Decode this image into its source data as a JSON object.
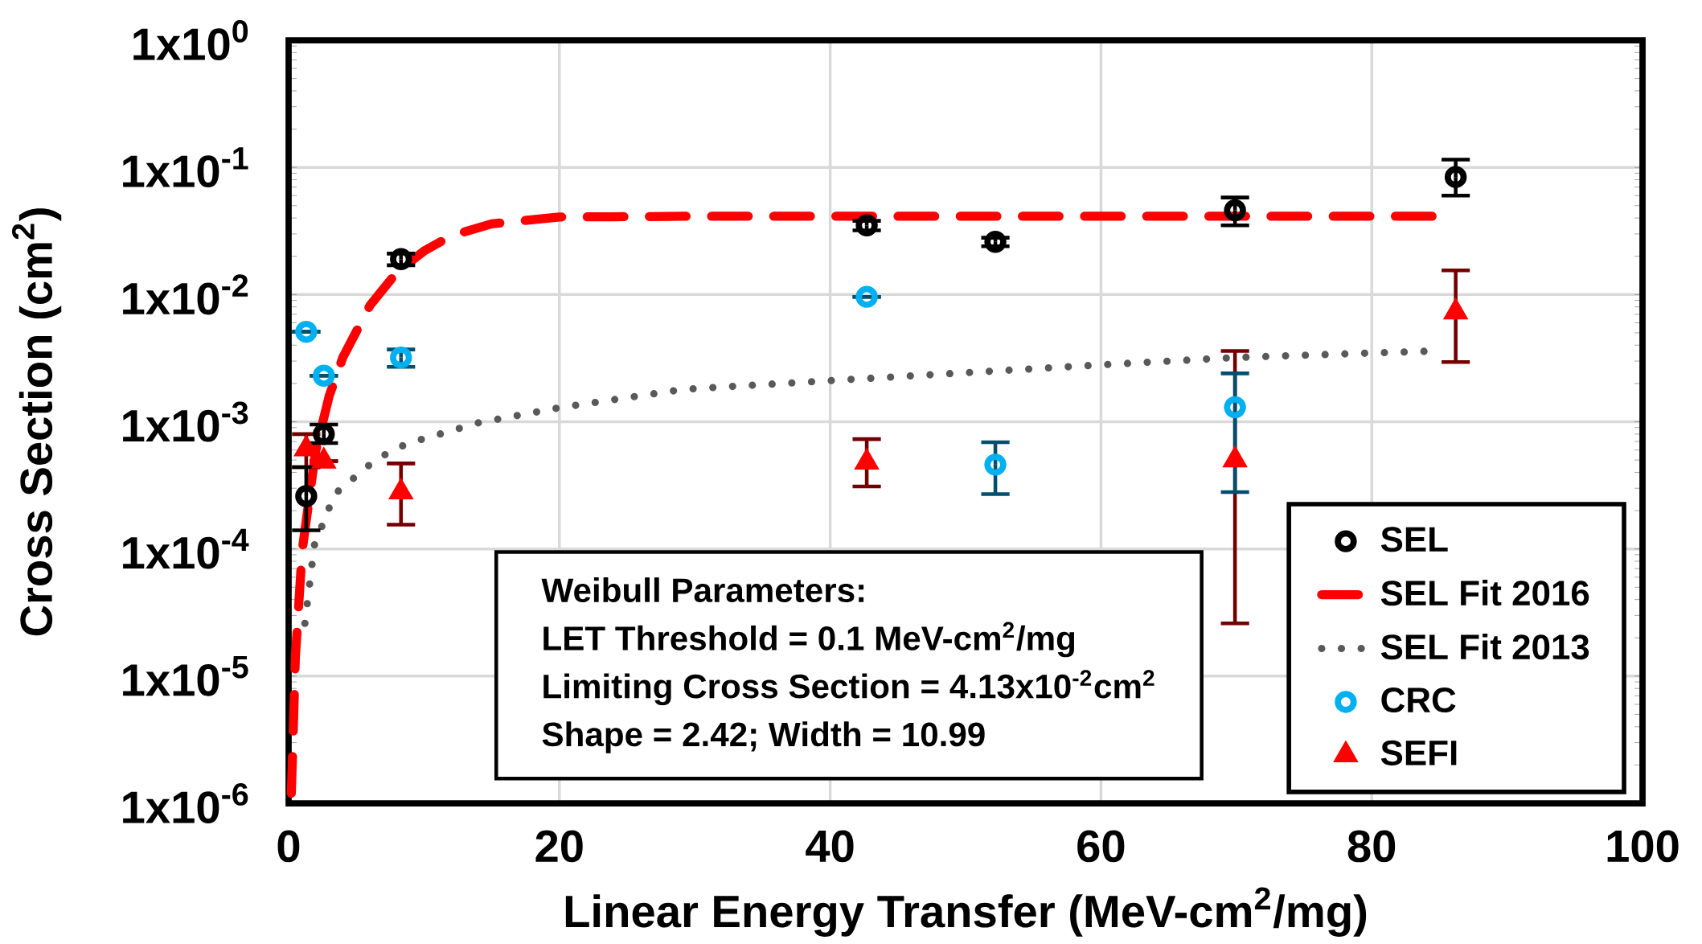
{
  "chart_data": {
    "type": "scatter",
    "xlabel": "Linear Energy Transfer (MeV-cm$^{2}$/mg)",
    "ylabel": "Cross Section (cm$^{2}$)",
    "xlim": [
      0,
      100
    ],
    "xticks": [
      0,
      20,
      40,
      60,
      80,
      100
    ],
    "ylim": [
      1e-06,
      1
    ],
    "yticks": [
      {
        "value": 1e-06,
        "label": "1x10$^{-6}$"
      },
      {
        "value": 1e-05,
        "label": "1x10$^{-5}$"
      },
      {
        "value": 0.0001,
        "label": "1x10$^{-4}$"
      },
      {
        "value": 0.001,
        "label": "1x10$^{-3}$"
      },
      {
        "value": 0.01,
        "label": "1x10$^{-2}$"
      },
      {
        "value": 0.1,
        "label": "1x10$^{-1}$"
      },
      {
        "value": 1,
        "label": "1x10$^{0}$"
      }
    ],
    "log": "y",
    "grid": true,
    "legend": "bottom right",
    "annotations": [
      "Weibull Parameters:",
      "LET Threshold = 0.1 MeV-cm$^{2}$/mg",
      "Limiting Cross Section = 4.13x10$^{-2}$cm$^{2}$",
      "Shape = 2.42; Width = 10.99"
    ],
    "series": [
      {
        "name": "SEL",
        "marker": "circle",
        "color": "#000000",
        "x": [
          1.3,
          2.6,
          8.3,
          42.7,
          52.2,
          69.9,
          86.2
        ],
        "values": [
          0.00026,
          0.0008,
          0.019,
          0.035,
          0.026,
          0.046,
          0.084
        ],
        "errors": [
          [
            0.00014,
            0.00044
          ],
          [
            0.00068,
            0.00095
          ],
          [
            0.017,
            0.021
          ],
          [
            0.032,
            0.038
          ],
          [
            0.024,
            0.028
          ],
          [
            0.035,
            0.058
          ],
          [
            0.06,
            0.115
          ]
        ]
      },
      {
        "name": "SEL Fit 2016",
        "type": "line",
        "marker": "none",
        "line_style": "dashed",
        "color": "#ff0000",
        "x": [
          0.2,
          0.3,
          0.5,
          1,
          2,
          3,
          4,
          6,
          8,
          10,
          12,
          15,
          20,
          30,
          50,
          85
        ],
        "values": [
          1.2e-06,
          2.6e-06,
          1.4e-05,
          9.7e-05,
          0.00059,
          0.0016,
          0.0032,
          0.0082,
          0.015,
          0.022,
          0.029,
          0.036,
          0.0407,
          0.0413,
          0.0413,
          0.0413
        ]
      },
      {
        "name": "SEL Fit 2013",
        "type": "line",
        "marker": "none",
        "line_style": "dotted",
        "color": "#595959",
        "x": [
          1.2,
          1.9,
          3.4,
          6.5,
          8.7,
          14,
          20,
          29.2,
          39.8,
          59.9,
          69.9,
          84.5
        ],
        "values": [
          2.6e-05,
          0.000107,
          0.00027,
          0.00051,
          0.00067,
          0.00098,
          0.00129,
          0.0018,
          0.0021,
          0.0028,
          0.0032,
          0.0036
        ]
      },
      {
        "name": "CRC",
        "marker": "circle",
        "color": "#00b0f0",
        "x": [
          1.3,
          2.6,
          8.3,
          42.7,
          52.2,
          69.9
        ],
        "values": [
          0.0051,
          0.0023,
          0.0032,
          0.0096,
          0.00046,
          0.0013
        ],
        "errors": [
          null,
          null,
          [
            0.0027,
            0.0037
          ],
          null,
          [
            0.00027,
            0.00069
          ],
          [
            0.00028,
            0.0024
          ]
        ]
      },
      {
        "name": "SEFI",
        "marker": "triangle",
        "color": "#ff0000",
        "x": [
          1.3,
          2.6,
          8.3,
          42.7,
          69.9,
          86.2
        ],
        "values": [
          0.00061,
          0.00049,
          0.00028,
          0.00048,
          0.0005,
          0.0073
        ],
        "errors": [
          [
            0.00044,
            0.0008
          ],
          null,
          [
            0.000155,
            0.00047
          ],
          [
            0.00031,
            0.00073
          ],
          [
            2.6e-05,
            0.0036
          ],
          [
            0.00295,
            0.0155
          ]
        ]
      }
    ]
  }
}
